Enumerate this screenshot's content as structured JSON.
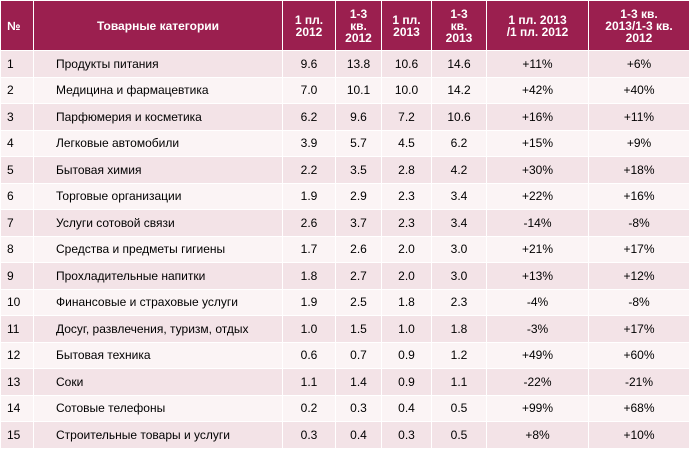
{
  "headers": {
    "num": "№",
    "category": "Товарные категории",
    "h1_2012": "1 пл. 2012",
    "q13_2012_l1": "1-3",
    "q13_2012_l2": "кв.",
    "q13_2012_l3": "2012",
    "h1_2013": "1 пл. 2013",
    "q13_2013_l1": "1-3",
    "q13_2013_l2": "кв.",
    "q13_2013_l3": "2013",
    "ch_h_l1": "1 пл. 2013",
    "ch_h_l2": "/1 пл. 2012",
    "ch_q_l1": "1-3 кв.",
    "ch_q_l2": "2013/1-3 кв.",
    "ch_q_l3": "2012"
  },
  "rows": [
    {
      "num": "1",
      "category": "Продукты питания",
      "h1_2012": "9.6",
      "q13_2012": "13.8",
      "h1_2013": "10.6",
      "q13_2013": "14.6",
      "change_h1": "+11%",
      "change_q13": "+6%"
    },
    {
      "num": "2",
      "category": "Медицина и фармацевтика",
      "h1_2012": "7.0",
      "q13_2012": "10.1",
      "h1_2013": "10.0",
      "q13_2013": "14.2",
      "change_h1": "+42%",
      "change_q13": "+40%"
    },
    {
      "num": "3",
      "category": "Парфюмерия и косметика",
      "h1_2012": "6.2",
      "q13_2012": "9.6",
      "h1_2013": "7.2",
      "q13_2013": "10.6",
      "change_h1": "+16%",
      "change_q13": "+11%"
    },
    {
      "num": "4",
      "category": "Легковые автомобили",
      "h1_2012": "3.9",
      "q13_2012": "5.7",
      "h1_2013": "4.5",
      "q13_2013": "6.2",
      "change_h1": "+15%",
      "change_q13": "+9%"
    },
    {
      "num": "5",
      "category": "Бытовая химия",
      "h1_2012": "2.2",
      "q13_2012": "3.5",
      "h1_2013": "2.8",
      "q13_2013": "4.2",
      "change_h1": "+30%",
      "change_q13": "+18%"
    },
    {
      "num": "6",
      "category": "Торговые организации",
      "h1_2012": "1.9",
      "q13_2012": "2.9",
      "h1_2013": "2.3",
      "q13_2013": "3.4",
      "change_h1": "+22%",
      "change_q13": "+16%"
    },
    {
      "num": "7",
      "category": "Услуги сотовой связи",
      "h1_2012": "2.6",
      "q13_2012": "3.7",
      "h1_2013": "2.3",
      "q13_2013": "3.4",
      "change_h1": "-14%",
      "change_q13": "-8%"
    },
    {
      "num": "8",
      "category": "Средства и предметы гигиены",
      "h1_2012": "1.7",
      "q13_2012": "2.6",
      "h1_2013": "2.0",
      "q13_2013": "3.0",
      "change_h1": "+21%",
      "change_q13": "+17%"
    },
    {
      "num": "9",
      "category": "Прохладительные напитки",
      "h1_2012": "1.8",
      "q13_2012": "2.7",
      "h1_2013": "2.0",
      "q13_2013": "3.0",
      "change_h1": "+13%",
      "change_q13": "+12%"
    },
    {
      "num": "10",
      "category": "Финансовые и страховые услуги",
      "h1_2012": "1.9",
      "q13_2012": "2.5",
      "h1_2013": "1.8",
      "q13_2013": "2.3",
      "change_h1": "-4%",
      "change_q13": "-8%"
    },
    {
      "num": "11",
      "category": "Досуг, развлечения, туризм, отдых",
      "h1_2012": "1.0",
      "q13_2012": "1.5",
      "h1_2013": "1.0",
      "q13_2013": "1.8",
      "change_h1": "-3%",
      "change_q13": "+17%"
    },
    {
      "num": "12",
      "category": "Бытовая техника",
      "h1_2012": "0.6",
      "q13_2012": "0.7",
      "h1_2013": "0.9",
      "q13_2013": "1.2",
      "change_h1": "+49%",
      "change_q13": "+60%"
    },
    {
      "num": "13",
      "category": "Соки",
      "h1_2012": "1.1",
      "q13_2012": "1.4",
      "h1_2013": "0.9",
      "q13_2013": "1.1",
      "change_h1": "-22%",
      "change_q13": "-21%"
    },
    {
      "num": "14",
      "category": "Сотовые телефоны",
      "h1_2012": "0.2",
      "q13_2012": "0.3",
      "h1_2013": "0.4",
      "q13_2013": "0.5",
      "change_h1": "+99%",
      "change_q13": "+68%"
    },
    {
      "num": "15",
      "category": "Строительные товары и услуги",
      "h1_2012": "0.3",
      "q13_2012": "0.4",
      "h1_2013": "0.3",
      "q13_2013": "0.5",
      "change_h1": "+8%",
      "change_q13": "+10%"
    }
  ],
  "colors": {
    "header_bg": "#9b1f4f",
    "header_text": "#ffffff",
    "row_odd_bg": "#f3e3e7",
    "row_even_bg": "#fbf4f5"
  }
}
